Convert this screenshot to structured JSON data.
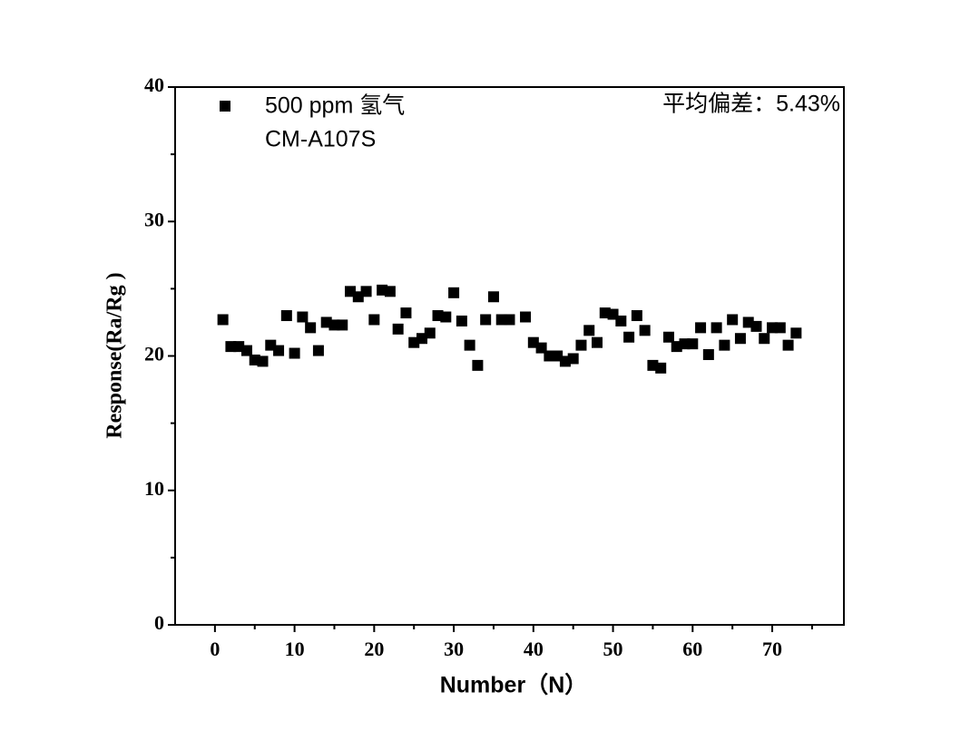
{
  "chart_data": {
    "type": "scatter",
    "annotation": "平均偏差：5.43%",
    "sensor_label": "CM-A107S",
    "x_label": "Number（N）",
    "y_label": "Response(Ra/Rg )",
    "xlim": [
      -5,
      79
    ],
    "ylim": [
      0,
      40
    ],
    "xticks": [
      0,
      10,
      20,
      30,
      40,
      50,
      60,
      70
    ],
    "yticks": [
      0,
      10,
      20,
      30,
      40
    ],
    "x_minor_ticks": [
      5,
      15,
      25,
      35,
      45,
      55,
      65,
      75
    ],
    "y_minor_ticks": [
      5,
      15,
      25,
      35
    ],
    "series": [
      {
        "name": "500 ppm 氢气",
        "color": "#000000",
        "x": [
          1,
          2,
          3,
          4,
          5,
          6,
          7,
          8,
          9,
          10,
          11,
          12,
          13,
          14,
          15,
          16,
          17,
          18,
          19,
          20,
          21,
          22,
          23,
          24,
          25,
          26,
          27,
          28,
          29,
          30,
          31,
          32,
          33,
          34,
          35,
          36,
          37,
          39,
          40,
          41,
          42,
          43,
          44,
          45,
          46,
          47,
          48,
          49,
          50,
          51,
          52,
          53,
          54,
          55,
          56,
          57,
          58,
          59,
          60,
          61,
          62,
          63,
          64,
          65,
          66,
          67,
          68,
          69,
          70,
          71,
          72,
          73
        ],
        "values": [
          22.7,
          20.7,
          20.7,
          20.4,
          19.7,
          19.6,
          20.8,
          20.4,
          23.0,
          20.2,
          22.9,
          22.1,
          20.4,
          22.5,
          22.3,
          22.3,
          24.8,
          24.4,
          24.8,
          22.7,
          24.9,
          24.8,
          22.0,
          23.2,
          21.0,
          21.3,
          21.7,
          23.0,
          22.9,
          24.7,
          22.6,
          20.8,
          19.3,
          22.7,
          24.4,
          22.7,
          22.7,
          22.9,
          21.0,
          20.6,
          20.0,
          20.0,
          19.6,
          19.8,
          20.8,
          21.9,
          21.0,
          23.2,
          23.1,
          22.6,
          21.4,
          23.0,
          21.9,
          19.3,
          19.1,
          21.4,
          20.7,
          20.9,
          20.9,
          22.1,
          20.1,
          22.1,
          20.8,
          22.7,
          21.3,
          22.5,
          22.2,
          21.3,
          22.1,
          22.1,
          20.8,
          21.7
        ]
      }
    ]
  }
}
